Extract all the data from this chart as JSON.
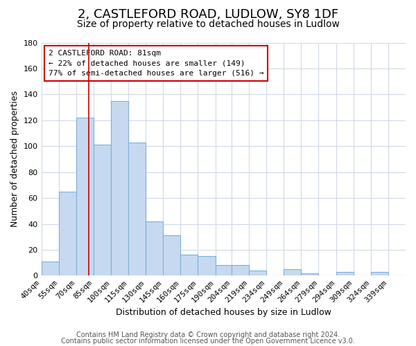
{
  "title": "2, CASTLEFORD ROAD, LUDLOW, SY8 1DF",
  "subtitle": "Size of property relative to detached houses in Ludlow",
  "xlabel": "Distribution of detached houses by size in Ludlow",
  "ylabel": "Number of detached properties",
  "bar_labels": [
    "40sqm",
    "55sqm",
    "70sqm",
    "85sqm",
    "100sqm",
    "115sqm",
    "130sqm",
    "145sqm",
    "160sqm",
    "175sqm",
    "190sqm",
    "204sqm",
    "219sqm",
    "234sqm",
    "249sqm",
    "264sqm",
    "279sqm",
    "294sqm",
    "309sqm",
    "324sqm",
    "339sqm"
  ],
  "bar_values": [
    11,
    65,
    122,
    101,
    135,
    103,
    42,
    31,
    16,
    15,
    8,
    8,
    4,
    0,
    5,
    2,
    0,
    3,
    0,
    3,
    0
  ],
  "bar_color": "#c6d9f0",
  "bar_edge_color": "#7eb0d5",
  "vline_x": 81,
  "vline_color": "#cc0000",
  "ylim": [
    0,
    180
  ],
  "yticks": [
    0,
    20,
    40,
    60,
    80,
    100,
    120,
    140,
    160,
    180
  ],
  "annotation_title": "2 CASTLEFORD ROAD: 81sqm",
  "annotation_line1": "← 22% of detached houses are smaller (149)",
  "annotation_line2": "77% of semi-detached houses are larger (516) →",
  "annotation_box_color": "#ffffff",
  "annotation_box_edge": "#cc0000",
  "footer1": "Contains HM Land Registry data © Crown copyright and database right 2024.",
  "footer2": "Contains public sector information licensed under the Open Government Licence v3.0.",
  "bg_color": "#ffffff",
  "grid_color": "#d0d8e8",
  "title_fontsize": 13,
  "subtitle_fontsize": 10,
  "axis_label_fontsize": 9,
  "tick_fontsize": 8,
  "footer_fontsize": 7
}
